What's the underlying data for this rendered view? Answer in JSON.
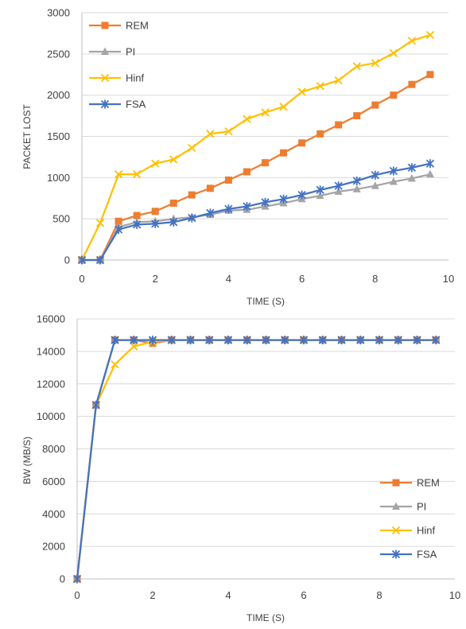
{
  "chart_data": [
    {
      "type": "line",
      "xlabel": "TIME (S)",
      "ylabel": "PACKET LOST",
      "xlim": [
        0,
        10
      ],
      "ylim": [
        0,
        3000
      ],
      "xticks": [
        0,
        2,
        4,
        6,
        8,
        10
      ],
      "yticks": [
        0,
        500,
        1000,
        1500,
        2000,
        2500,
        3000
      ],
      "grid": "horizontal",
      "legend": "top-left",
      "x": [
        0,
        0.5,
        1,
        1.5,
        2,
        2.5,
        3,
        3.5,
        4,
        4.5,
        5,
        5.5,
        6,
        6.5,
        7,
        7.5,
        8,
        8.5,
        9,
        9.5
      ],
      "series": [
        {
          "name": "REM",
          "color": "#ED7D31",
          "marker": "square",
          "values": [
            0,
            0,
            470,
            540,
            590,
            690,
            790,
            870,
            970,
            1070,
            1180,
            1300,
            1420,
            1530,
            1640,
            1750,
            1880,
            2000,
            2130,
            2250
          ]
        },
        {
          "name": "PI",
          "color": "#A5A5A5",
          "marker": "triangle",
          "values": [
            0,
            0,
            400,
            460,
            470,
            500,
            520,
            550,
            600,
            610,
            650,
            690,
            740,
            780,
            830,
            860,
            900,
            950,
            990,
            1040
          ]
        },
        {
          "name": "Hinf",
          "color": "#FFC000",
          "marker": "x",
          "values": [
            0,
            450,
            1040,
            1040,
            1170,
            1220,
            1360,
            1530,
            1560,
            1710,
            1790,
            1860,
            2040,
            2110,
            2180,
            2350,
            2390,
            2510,
            2660,
            2730
          ]
        },
        {
          "name": "FSA",
          "color": "#4472C4",
          "marker": "star",
          "values": [
            0,
            0,
            370,
            430,
            440,
            460,
            510,
            570,
            620,
            650,
            700,
            740,
            790,
            850,
            900,
            960,
            1030,
            1080,
            1120,
            1170
          ]
        }
      ]
    },
    {
      "type": "line",
      "xlabel": "TIME (S)",
      "ylabel": "BW (MB/S)",
      "xlim": [
        0,
        10
      ],
      "ylim": [
        0,
        16000
      ],
      "xticks": [
        0,
        2,
        4,
        6,
        8,
        10
      ],
      "yticks": [
        0,
        2000,
        4000,
        6000,
        8000,
        10000,
        12000,
        14000,
        16000
      ],
      "grid": "horizontal",
      "legend": "bottom-right",
      "x": [
        0,
        0.5,
        1,
        1.5,
        2,
        2.5,
        3,
        3.5,
        4,
        4.5,
        5,
        5.5,
        6,
        6.5,
        7,
        7.5,
        8,
        8.5,
        9,
        9.5
      ],
      "series": [
        {
          "name": "REM",
          "color": "#ED7D31",
          "marker": "square",
          "values": [
            0,
            10700,
            14700,
            14700,
            14500,
            14700,
            14700,
            14700,
            14700,
            14700,
            14700,
            14700,
            14700,
            14700,
            14700,
            14700,
            14700,
            14700,
            14700,
            14700
          ]
        },
        {
          "name": "PI",
          "color": "#A5A5A5",
          "marker": "triangle",
          "values": [
            0,
            10700,
            14700,
            14700,
            14700,
            14700,
            14700,
            14700,
            14700,
            14700,
            14700,
            14700,
            14700,
            14700,
            14700,
            14700,
            14700,
            14700,
            14700,
            14700
          ]
        },
        {
          "name": "Hinf",
          "color": "#FFC000",
          "marker": "x",
          "values": [
            0,
            10700,
            13200,
            14300,
            14600,
            14700,
            14700,
            14700,
            14700,
            14700,
            14700,
            14700,
            14700,
            14700,
            14700,
            14700,
            14700,
            14700,
            14700,
            14700
          ]
        },
        {
          "name": "FSA",
          "color": "#4472C4",
          "marker": "star",
          "values": [
            0,
            10700,
            14700,
            14700,
            14700,
            14700,
            14700,
            14700,
            14700,
            14700,
            14700,
            14700,
            14700,
            14700,
            14700,
            14700,
            14700,
            14700,
            14700,
            14700
          ]
        }
      ]
    }
  ]
}
